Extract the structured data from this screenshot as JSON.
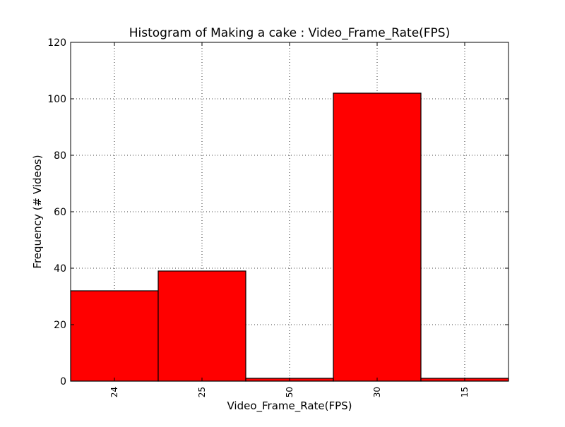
{
  "chart_data": {
    "type": "bar",
    "title": "Histogram of Making a cake : Video_Frame_Rate(FPS)",
    "xlabel": "Video_Frame_Rate(FPS)",
    "ylabel": "Frequency (# Videos)",
    "categories": [
      "24",
      "25",
      "50",
      "30",
      "15"
    ],
    "values": [
      32,
      39,
      1,
      102,
      1
    ],
    "ylim": [
      0,
      120
    ],
    "yticks": [
      "0",
      "20",
      "40",
      "60",
      "80",
      "100",
      "120"
    ],
    "grid": true,
    "bar_color": "#ff0000",
    "edge_color": "#000000"
  }
}
